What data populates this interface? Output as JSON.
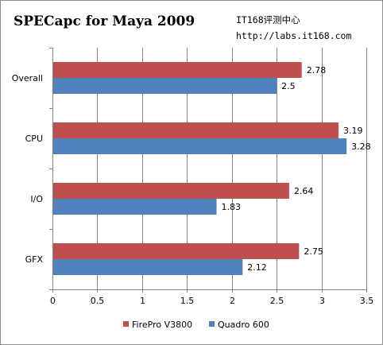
{
  "title": "SPECapc for Maya 2009",
  "watermark": {
    "line1": "IT168评测中心",
    "line2": "http://labs.it168.com"
  },
  "colors": {
    "firepro": "#c0504d",
    "quadro": "#4f81bd",
    "axis": "#868686",
    "grid": "#868686"
  },
  "chart_data": {
    "type": "bar",
    "orientation": "horizontal",
    "categories": [
      "Overall",
      "CPU",
      "I/O",
      "GFX"
    ],
    "series": [
      {
        "name": "FirePro V3800",
        "values": [
          2.78,
          3.19,
          2.64,
          2.75
        ],
        "color": "#c0504d"
      },
      {
        "name": "Quadro 600",
        "values": [
          2.5,
          3.28,
          1.83,
          2.12
        ],
        "color": "#4f81bd"
      }
    ],
    "data_labels": {
      "FirePro V3800": [
        "2.78",
        "3.19",
        "2.64",
        "2.75"
      ],
      "Quadro 600": [
        "2.5",
        "3.28",
        "1.83",
        "2.12"
      ]
    },
    "xlim": [
      0,
      3.5
    ],
    "x_ticks": [
      0,
      0.5,
      1,
      1.5,
      2,
      2.5,
      3,
      3.5
    ],
    "x_tick_labels": [
      "0",
      "0.5",
      "1",
      "1.5",
      "2",
      "2.5",
      "3",
      "3.5"
    ],
    "grid": "vertical",
    "legend": "bottom"
  }
}
